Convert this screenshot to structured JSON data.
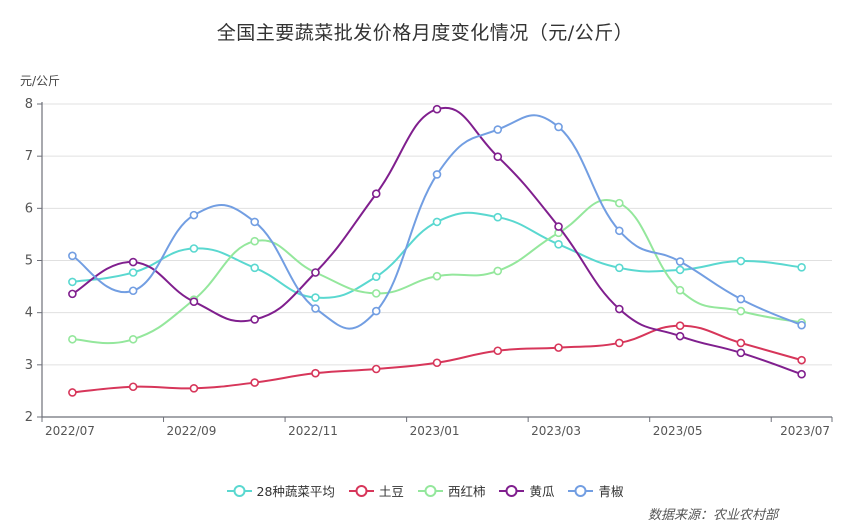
{
  "header": {
    "title": "全国主要蔬菜批发价格月度变化情况（元/公斤）"
  },
  "footer": {
    "source": "数据来源：农业农村部"
  },
  "chart_data": {
    "type": "line",
    "smooth": true,
    "title": "全国主要蔬菜批发价格月度变化情况（元/公斤）",
    "xlabel": "",
    "ylabel": "元/公斤",
    "ylim": [
      2,
      8
    ],
    "yticks": [
      2,
      3,
      4,
      5,
      6,
      7,
      8
    ],
    "grid": {
      "horizontal": true,
      "vertical": false
    },
    "legend_position": "bottom",
    "categories": [
      "2022/07",
      "2022/08",
      "2022/09",
      "2022/10",
      "2022/11",
      "2022/12",
      "2023/01",
      "2023/02",
      "2023/03",
      "2023/04",
      "2023/05",
      "2023/06",
      "2023/07"
    ],
    "xtick_labels": [
      "2022/07",
      "2022/09",
      "2022/11",
      "2023/01",
      "2023/03",
      "2023/05",
      "2023/07"
    ],
    "series": [
      {
        "name": "28种蔬菜平均",
        "color": "#5ad8d0",
        "values": [
          4.59,
          4.77,
          5.23,
          4.86,
          4.29,
          4.69,
          5.74,
          5.83,
          5.31,
          4.86,
          4.82,
          4.99,
          4.87
        ]
      },
      {
        "name": "土豆",
        "color": "#d7365a",
        "values": [
          2.47,
          2.58,
          2.55,
          2.66,
          2.84,
          2.92,
          3.04,
          3.27,
          3.33,
          3.42,
          3.75,
          3.42,
          3.09
        ]
      },
      {
        "name": "西红柿",
        "color": "#94e79c",
        "values": [
          3.49,
          3.49,
          4.25,
          5.37,
          4.77,
          4.37,
          4.7,
          4.8,
          5.53,
          6.1,
          4.43,
          4.03,
          3.81
        ]
      },
      {
        "name": "黄瓜",
        "color": "#801f8e",
        "values": [
          4.36,
          4.97,
          4.21,
          3.87,
          4.77,
          6.28,
          7.9,
          6.99,
          5.65,
          4.07,
          3.55,
          3.23,
          2.82
        ]
      },
      {
        "name": "青椒",
        "color": "#729ee2",
        "values": [
          5.09,
          4.42,
          5.87,
          5.74,
          4.08,
          4.03,
          6.65,
          7.51,
          7.56,
          5.57,
          4.98,
          4.26,
          3.76
        ]
      }
    ]
  },
  "legend": {
    "items": [
      {
        "label": "28种蔬菜平均",
        "color": "#5ad8d0"
      },
      {
        "label": "土豆",
        "color": "#d7365a"
      },
      {
        "label": "西红柿",
        "color": "#94e79c"
      },
      {
        "label": "黄瓜",
        "color": "#801f8e"
      },
      {
        "label": "青椒",
        "color": "#729ee2"
      }
    ]
  }
}
